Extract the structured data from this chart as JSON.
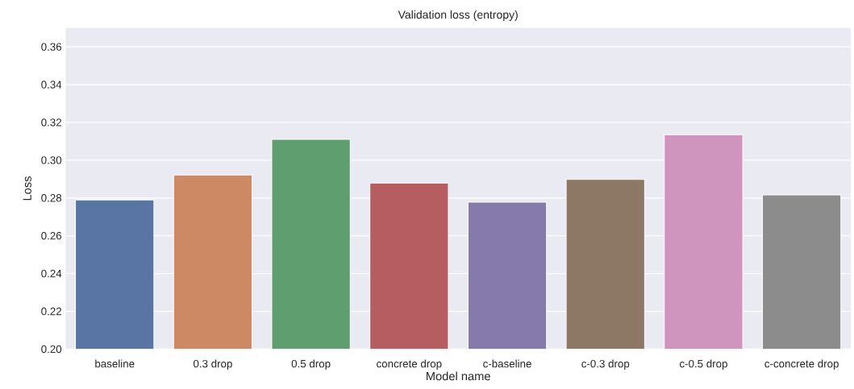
{
  "chart_data": {
    "type": "bar",
    "title": "Validation loss (entropy)",
    "xlabel": "Model name",
    "ylabel": "Loss",
    "categories": [
      "baseline",
      "0.3 drop",
      "0.5 drop",
      "concrete drop",
      "c-baseline",
      "c-0.3 drop",
      "c-0.5 drop",
      "c-concrete drop"
    ],
    "values": [
      0.279,
      0.2922,
      0.311,
      0.2879,
      0.2778,
      0.2898,
      0.3135,
      0.2816
    ],
    "colors": [
      "#5975a4",
      "#cc8963",
      "#5f9e6e",
      "#b55d60",
      "#857aab",
      "#8d7866",
      "#d095bf",
      "#8c8c8c"
    ],
    "ylim": [
      0.2,
      0.37
    ],
    "yticks": [
      {
        "value": 0.2,
        "label": "0.20"
      },
      0.22,
      0.24,
      0.26,
      0.28,
      {
        "value": 0.3,
        "label": "0.30"
      },
      0.32,
      0.34,
      0.36
    ],
    "grid": true
  }
}
